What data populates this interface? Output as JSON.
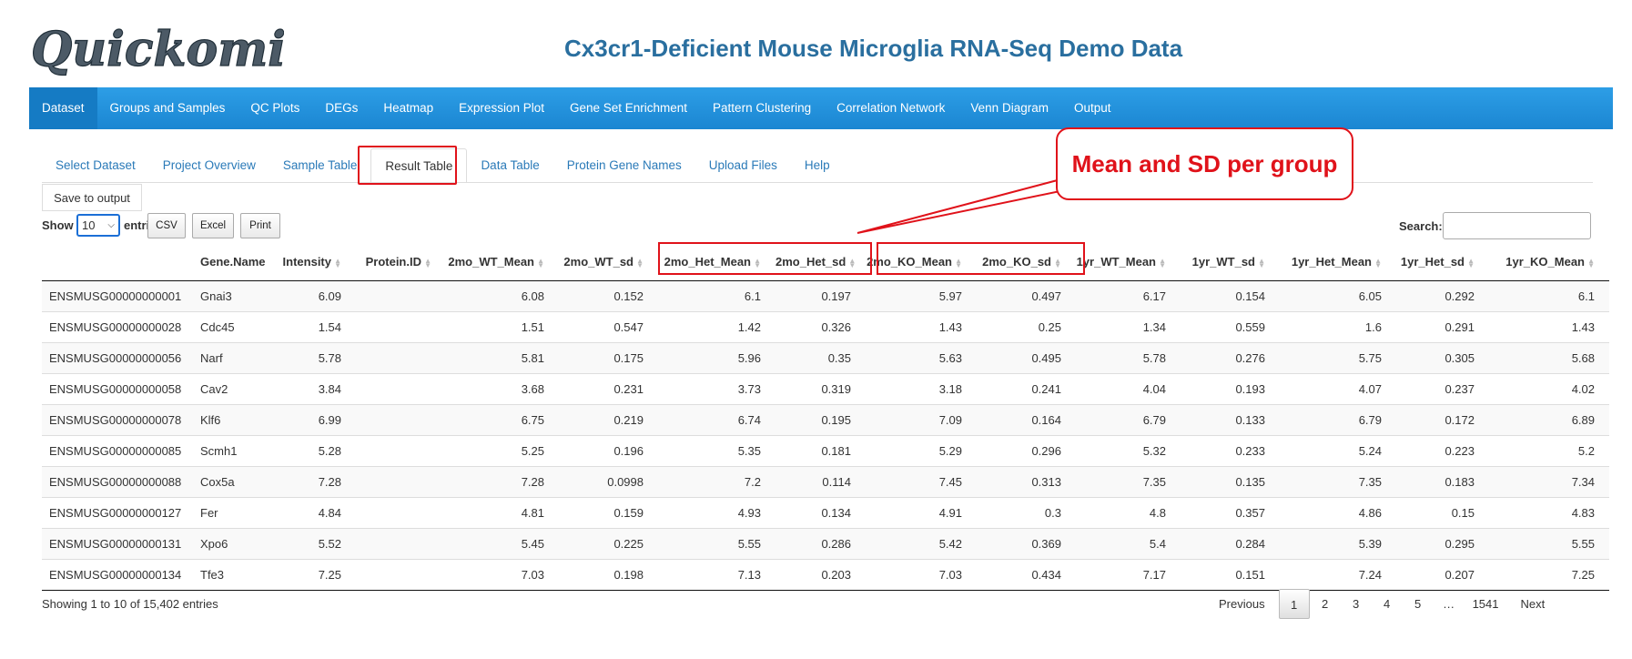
{
  "app": {
    "logo_text": "Quickomics",
    "title": "Cx3cr1-Deficient Mouse Microglia RNA-Seq Demo Data"
  },
  "navbar": {
    "items": [
      {
        "label": "Dataset",
        "active": true
      },
      {
        "label": "Groups and Samples"
      },
      {
        "label": "QC Plots"
      },
      {
        "label": "DEGs"
      },
      {
        "label": "Heatmap"
      },
      {
        "label": "Expression Plot"
      },
      {
        "label": "Gene Set Enrichment"
      },
      {
        "label": "Pattern Clustering"
      },
      {
        "label": "Correlation Network"
      },
      {
        "label": "Venn Diagram"
      },
      {
        "label": "Output"
      }
    ]
  },
  "subtabs": {
    "items": [
      {
        "label": "Select Dataset"
      },
      {
        "label": "Project Overview"
      },
      {
        "label": "Sample Table"
      },
      {
        "label": "Result Table",
        "active": true
      },
      {
        "label": "Data Table"
      },
      {
        "label": "Protein Gene Names"
      },
      {
        "label": "Upload Files"
      },
      {
        "label": "Help"
      }
    ]
  },
  "toolbar": {
    "save_label": "Save to output",
    "show_label": "Show",
    "page_length": "10",
    "entries_label": "entries",
    "csv_label": "CSV",
    "excel_label": "Excel",
    "print_label": "Print",
    "search_label": "Search:"
  },
  "annotation": {
    "callout_text": "Mean and SD per group",
    "highlight_color": "#e0121a"
  },
  "table": {
    "columns": [
      "",
      "Gene.Name",
      "Intensity",
      "Protein.ID",
      "2mo_WT_Mean",
      "2mo_WT_sd",
      "2mo_Het_Mean",
      "2mo_Het_sd",
      "2mo_KO_Mean",
      "2mo_KO_sd",
      "1yr_WT_Mean",
      "1yr_WT_sd",
      "1yr_Het_Mean",
      "1yr_Het_sd",
      "1yr_KO_Mean"
    ],
    "rows": [
      [
        "ENSMUSG00000000001",
        "Gnai3",
        "6.09",
        "",
        "6.08",
        "0.152",
        "6.1",
        "0.197",
        "5.97",
        "0.497",
        "6.17",
        "0.154",
        "6.05",
        "0.292",
        "6.1"
      ],
      [
        "ENSMUSG00000000028",
        "Cdc45",
        "1.54",
        "",
        "1.51",
        "0.547",
        "1.42",
        "0.326",
        "1.43",
        "0.25",
        "1.34",
        "0.559",
        "1.6",
        "0.291",
        "1.43"
      ],
      [
        "ENSMUSG00000000056",
        "Narf",
        "5.78",
        "",
        "5.81",
        "0.175",
        "5.96",
        "0.35",
        "5.63",
        "0.495",
        "5.78",
        "0.276",
        "5.75",
        "0.305",
        "5.68"
      ],
      [
        "ENSMUSG00000000058",
        "Cav2",
        "3.84",
        "",
        "3.68",
        "0.231",
        "3.73",
        "0.319",
        "3.18",
        "0.241",
        "4.04",
        "0.193",
        "4.07",
        "0.237",
        "4.02"
      ],
      [
        "ENSMUSG00000000078",
        "Klf6",
        "6.99",
        "",
        "6.75",
        "0.219",
        "6.74",
        "0.195",
        "7.09",
        "0.164",
        "6.79",
        "0.133",
        "6.79",
        "0.172",
        "6.89"
      ],
      [
        "ENSMUSG00000000085",
        "Scmh1",
        "5.28",
        "",
        "5.25",
        "0.196",
        "5.35",
        "0.181",
        "5.29",
        "0.296",
        "5.32",
        "0.233",
        "5.24",
        "0.223",
        "5.2"
      ],
      [
        "ENSMUSG00000000088",
        "Cox5a",
        "7.28",
        "",
        "7.28",
        "0.0998",
        "7.2",
        "0.114",
        "7.45",
        "0.313",
        "7.35",
        "0.135",
        "7.35",
        "0.183",
        "7.34"
      ],
      [
        "ENSMUSG00000000127",
        "Fer",
        "4.84",
        "",
        "4.81",
        "0.159",
        "4.93",
        "0.134",
        "4.91",
        "0.3",
        "4.8",
        "0.357",
        "4.86",
        "0.15",
        "4.83"
      ],
      [
        "ENSMUSG00000000131",
        "Xpo6",
        "5.52",
        "",
        "5.45",
        "0.225",
        "5.55",
        "0.286",
        "5.42",
        "0.369",
        "5.4",
        "0.284",
        "5.39",
        "0.295",
        "5.55"
      ],
      [
        "ENSMUSG00000000134",
        "Tfe3",
        "7.25",
        "",
        "7.03",
        "0.198",
        "7.13",
        "0.203",
        "7.03",
        "0.434",
        "7.17",
        "0.151",
        "7.24",
        "0.207",
        "7.25"
      ]
    ]
  },
  "footer": {
    "info": "Showing 1 to 10 of 15,402 entries",
    "pagination": [
      "Previous",
      "1",
      "2",
      "3",
      "4",
      "5",
      "…",
      "1541",
      "Next"
    ],
    "current_page": "1"
  }
}
